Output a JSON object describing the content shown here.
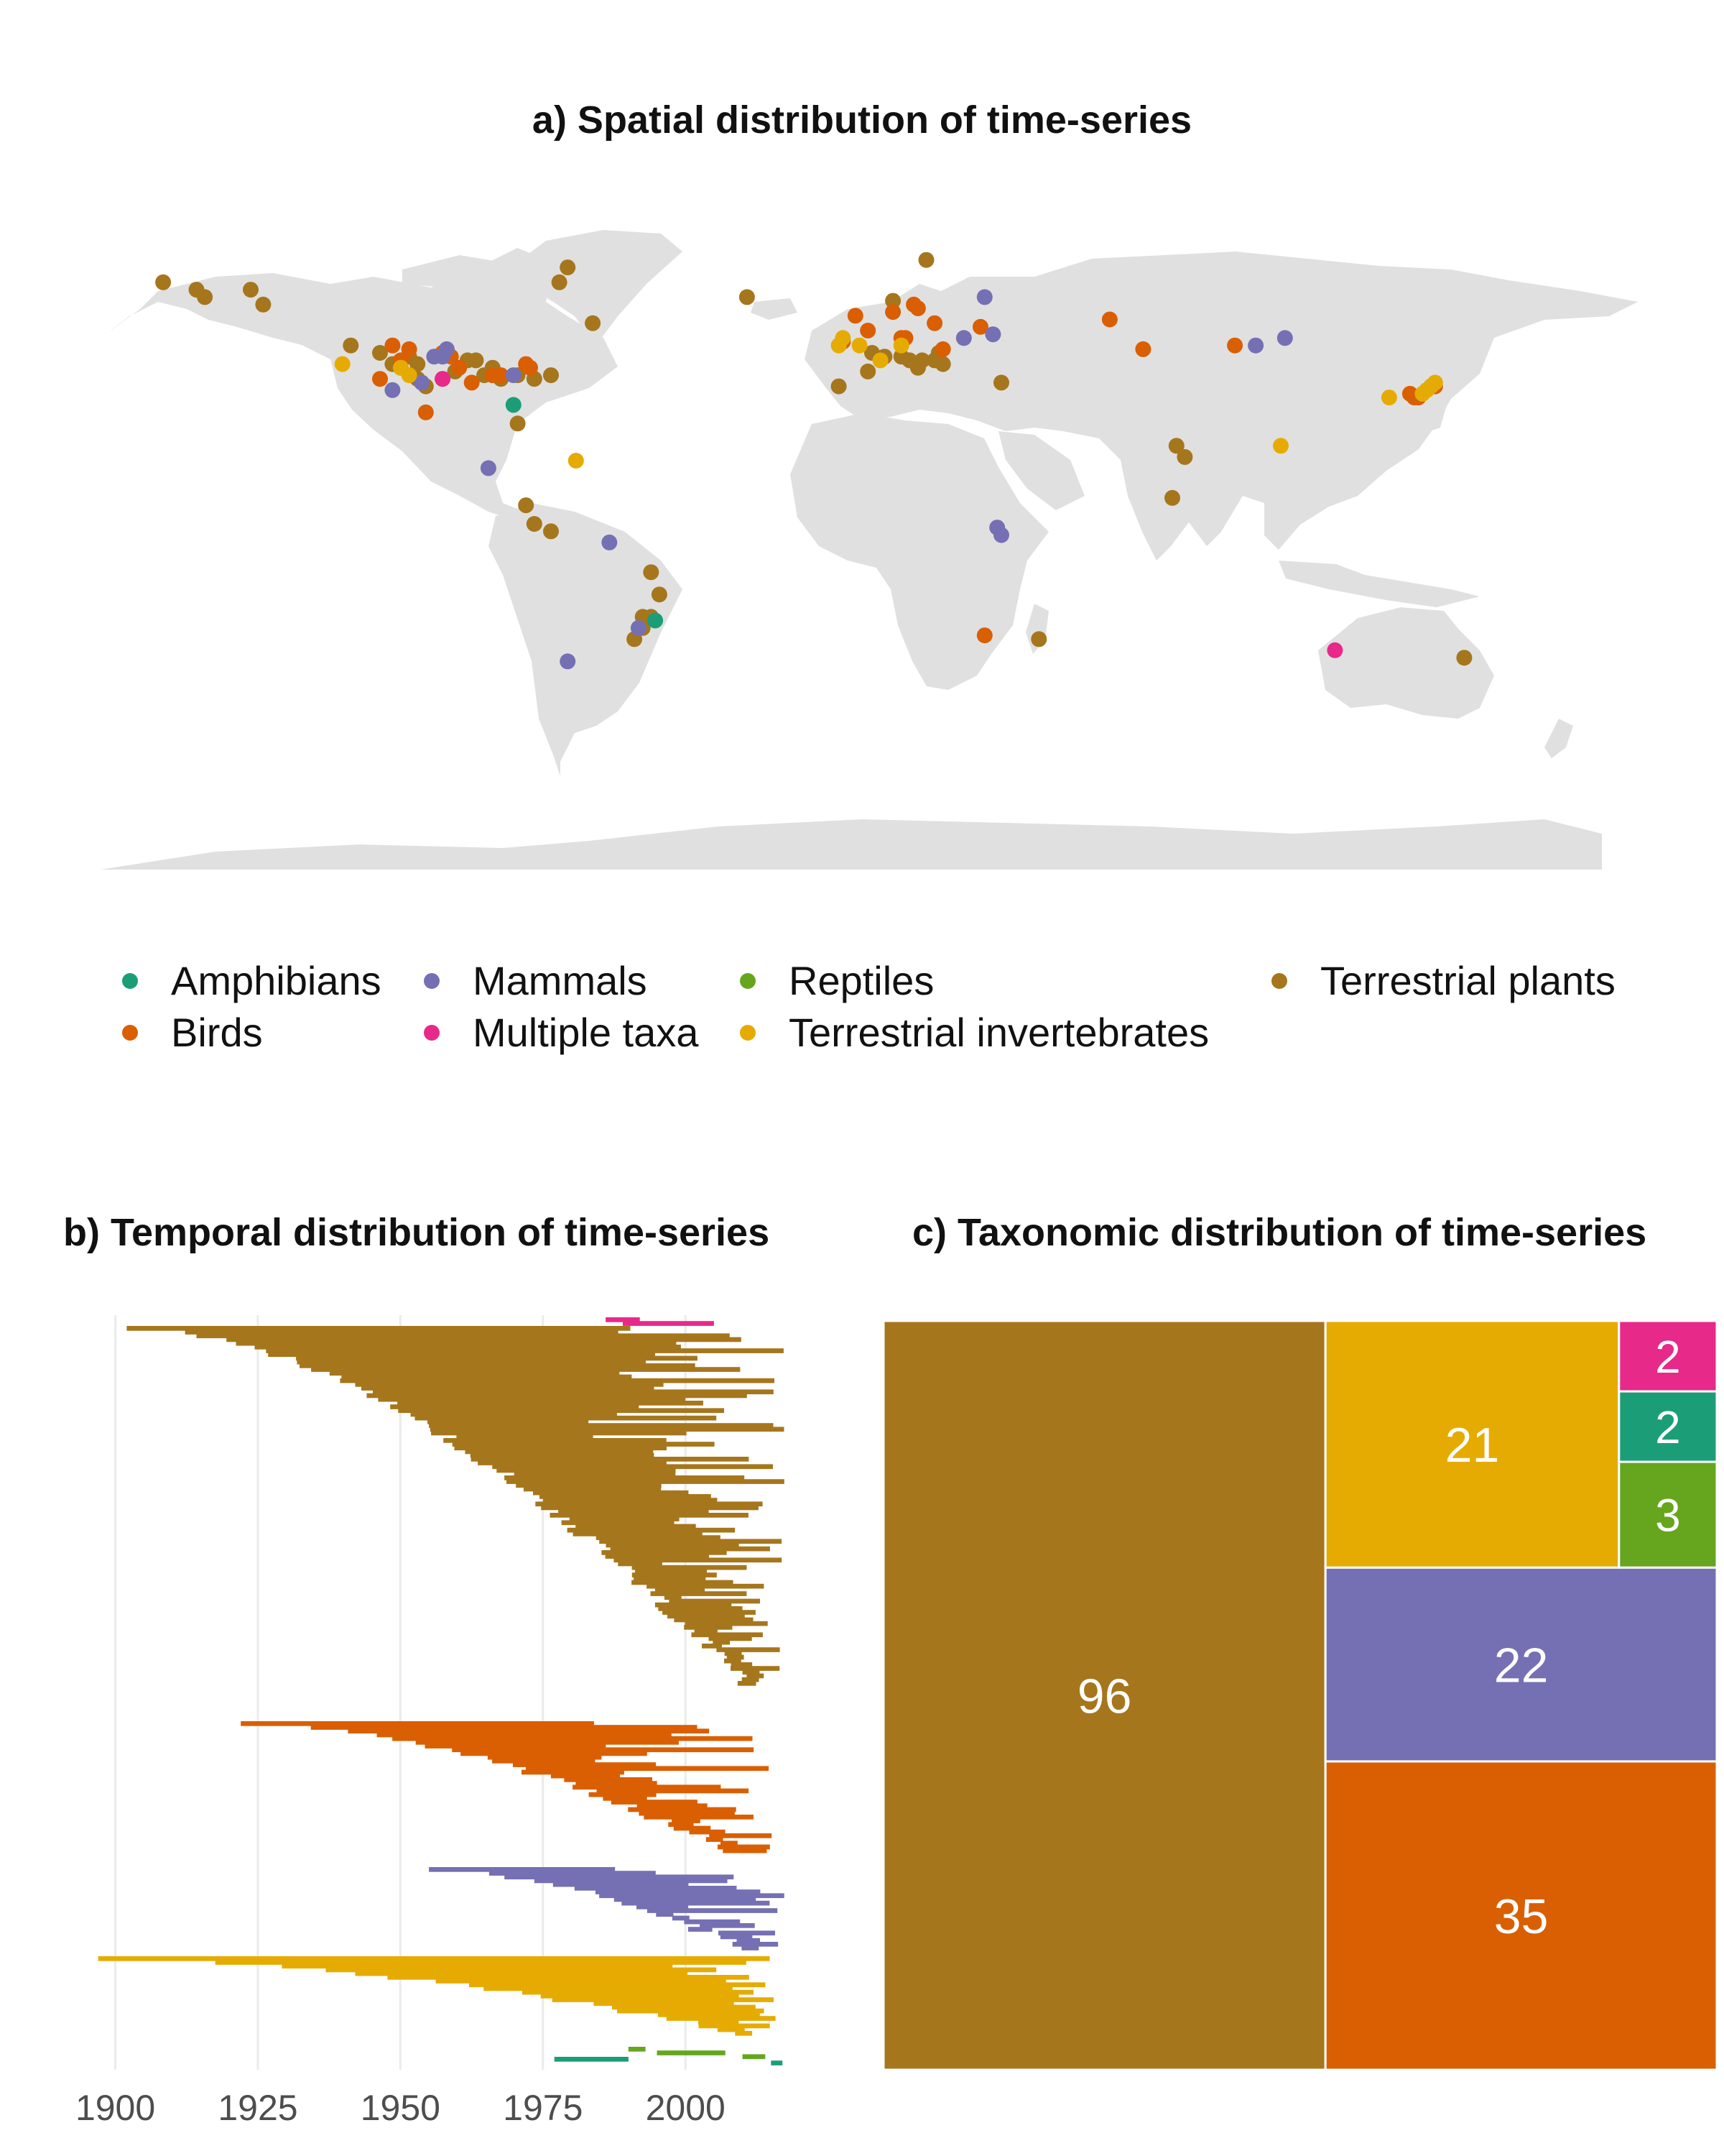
{
  "titles": {
    "map": "a) Spatial distribution of time-series",
    "temporal": "b) Temporal distribution of time-series",
    "taxonomic": "c) Taxonomic distribution of time-series"
  },
  "colors": {
    "amphibians": "#1b9e77",
    "birds": "#d95f02",
    "mammals": "#7570b3",
    "multiple": "#e7298a",
    "reptiles": "#66a61e",
    "invertebrates": "#e6ab02",
    "plants": "#a6761d",
    "land": "#e0e0e0",
    "grid": "#ebebeb"
  },
  "legend": [
    {
      "label": "Amphibians",
      "color": "#1b9e77"
    },
    {
      "label": "Birds",
      "color": "#d95f02"
    },
    {
      "label": "Mammals",
      "color": "#7570b3"
    },
    {
      "label": "Multiple taxa",
      "color": "#e7298a"
    },
    {
      "label": "Reptiles",
      "color": "#66a61e"
    },
    {
      "label": "Terrestrial invertebrates",
      "color": "#e6ab02"
    },
    {
      "label": "Terrestrial plants",
      "color": "#a6761d"
    }
  ],
  "chart_data": [
    {
      "type": "scatter",
      "title": "a) Spatial distribution of time-series",
      "xlabel": "",
      "ylabel": "",
      "xlim": [
        -180,
        180
      ],
      "ylim": [
        -90,
        84
      ],
      "grid": false,
      "legend_position": "bottom",
      "series": [
        {
          "name": "Terrestrial plants",
          "color": "#a6761d",
          "points": [
            [
              -165,
              68
            ],
            [
              -157,
              66
            ],
            [
              -155,
              64
            ],
            [
              -144,
              66
            ],
            [
              -141,
              62
            ],
            [
              -120,
              51
            ],
            [
              -113,
              49
            ],
            [
              -110,
              46
            ],
            [
              -108,
              45
            ],
            [
              -106,
              48
            ],
            [
              -104,
              46
            ],
            [
              -104,
              42
            ],
            [
              -102,
              40
            ],
            [
              -98,
              42
            ],
            [
              -95,
              44
            ],
            [
              -92,
              47
            ],
            [
              -90,
              47
            ],
            [
              -88,
              43
            ],
            [
              -86,
              45
            ],
            [
              -84,
              42
            ],
            [
              -80,
              43
            ],
            [
              -76,
              42
            ],
            [
              -72,
              43
            ],
            [
              -70,
              68
            ],
            [
              -68,
              72
            ],
            [
              -62,
              57
            ],
            [
              -80,
              30
            ],
            [
              -78,
              8
            ],
            [
              -76,
              3
            ],
            [
              -72,
              1
            ],
            [
              -48,
              -10
            ],
            [
              -46,
              -16
            ],
            [
              -48,
              -22
            ],
            [
              -50,
              -22
            ],
            [
              -52,
              -28
            ],
            [
              -50,
              -25
            ],
            [
              -25,
              64
            ],
            [
              10,
              63
            ],
            [
              18,
              74
            ],
            [
              5,
              49
            ],
            [
              8,
              48
            ],
            [
              12,
              48
            ],
            [
              14,
              47
            ],
            [
              17,
              47
            ],
            [
              20,
              47
            ],
            [
              22,
              46
            ],
            [
              16,
              45
            ],
            [
              21,
              49
            ],
            [
              4,
              44
            ],
            [
              -3,
              40
            ],
            [
              36,
              41
            ],
            [
              45,
              -28
            ],
            [
              78,
              24
            ],
            [
              80,
              21
            ],
            [
              77,
              10
            ],
            [
              147,
              -33
            ]
          ]
        },
        {
          "name": "Birds",
          "color": "#d95f02",
          "points": [
            [
              -110,
              51
            ],
            [
              -106,
              50
            ],
            [
              -108,
              47
            ],
            [
              -98,
              49
            ],
            [
              -96,
              48
            ],
            [
              -94,
              45
            ],
            [
              -91,
              41
            ],
            [
              -86,
              43
            ],
            [
              -84,
              43
            ],
            [
              -113,
              42
            ],
            [
              -102,
              33
            ],
            [
              -78,
              46
            ],
            [
              -77,
              45
            ],
            [
              -2,
              52
            ],
            [
              4,
              55
            ],
            [
              10,
              60
            ],
            [
              15,
              62
            ],
            [
              16,
              61
            ],
            [
              12,
              53
            ],
            [
              13,
              53
            ],
            [
              20,
              57
            ],
            [
              22,
              50
            ],
            [
              31,
              56
            ],
            [
              62,
              58
            ],
            [
              70,
              50
            ],
            [
              92,
              51
            ],
            [
              134,
              38
            ],
            [
              135,
              37
            ],
            [
              136,
              37
            ],
            [
              140,
              40
            ],
            [
              32,
              -27
            ],
            [
              1,
              59
            ]
          ]
        },
        {
          "name": "Mammals",
          "color": "#7570b3",
          "points": [
            [
              -97,
              50
            ],
            [
              -100,
              48
            ],
            [
              -98,
              48
            ],
            [
              -81,
              43
            ],
            [
              -103,
              41
            ],
            [
              -110,
              39
            ],
            [
              -87,
              18
            ],
            [
              -58,
              -2
            ],
            [
              -68,
              -34
            ],
            [
              -51,
              -25
            ],
            [
              35,
              2
            ],
            [
              36,
              0
            ],
            [
              32,
              64
            ],
            [
              27,
              53
            ],
            [
              34,
              54
            ],
            [
              97,
              51
            ],
            [
              104,
              53
            ]
          ]
        },
        {
          "name": "Multiple taxa",
          "color": "#e7298a",
          "points": [
            [
              -98,
              42
            ],
            [
              116,
              -31
            ]
          ]
        },
        {
          "name": "Terrestrial invertebrates",
          "color": "#e6ab02",
          "points": [
            [
              -122,
              46
            ],
            [
              -108,
              45
            ],
            [
              -66,
              20
            ],
            [
              -3,
              51
            ],
            [
              -2,
              53
            ],
            [
              2,
              51
            ],
            [
              7,
              47
            ],
            [
              12,
              51
            ],
            [
              103,
              24
            ],
            [
              129,
              37
            ],
            [
              137,
              38
            ],
            [
              138,
              39
            ],
            [
              139,
              40
            ],
            [
              140,
              41
            ],
            [
              -106,
              43
            ]
          ]
        },
        {
          "name": "Amphibians",
          "color": "#1b9e77",
          "points": [
            [
              -81,
              35
            ],
            [
              -47,
              -23
            ]
          ]
        }
      ]
    },
    {
      "type": "bar",
      "orientation": "horizontal-range",
      "title": "b) Temporal distribution of time-series",
      "xlabel": "",
      "ylabel": "",
      "xlim": [
        1893,
        2019
      ],
      "xticks": [
        1900,
        1925,
        1950,
        1975,
        2000
      ],
      "grid": true,
      "series": [
        {
          "name": "Multiple taxa",
          "color": "#e7298a",
          "count": 2
        },
        {
          "name": "Terrestrial plants",
          "color": "#a6761d",
          "count": 96,
          "start_range": [
            1902,
            2010
          ],
          "end_range": [
            1975,
            2018
          ]
        },
        {
          "name": "Birds",
          "color": "#d95f02",
          "count": 35,
          "start_range": [
            1922,
            2008
          ],
          "end_range": [
            1975,
            2016
          ]
        },
        {
          "name": "Mammals",
          "color": "#7570b3",
          "count": 22,
          "start_range": [
            1955,
            2010
          ],
          "end_range": [
            1985,
            2018
          ]
        },
        {
          "name": "Terrestrial invertebrates",
          "color": "#e6ab02",
          "count": 21,
          "start_range": [
            1897,
            2010
          ],
          "end_range": [
            1995,
            2016
          ]
        },
        {
          "name": "Reptiles",
          "color": "#66a61e",
          "count": 3
        },
        {
          "name": "Amphibians",
          "color": "#1b9e77",
          "count": 2
        }
      ]
    },
    {
      "type": "treemap",
      "title": "c) Taxonomic distribution of time-series",
      "items": [
        {
          "name": "Terrestrial plants",
          "value": 96,
          "color": "#a6761d"
        },
        {
          "name": "Birds",
          "value": 35,
          "color": "#d95f02"
        },
        {
          "name": "Mammals",
          "value": 22,
          "color": "#7570b3"
        },
        {
          "name": "Terrestrial invertebrates",
          "value": 21,
          "color": "#e6ab02"
        },
        {
          "name": "Reptiles",
          "value": 3,
          "color": "#66a61e"
        },
        {
          "name": "Amphibians",
          "value": 2,
          "color": "#1b9e77"
        },
        {
          "name": "Multiple taxa",
          "value": 2,
          "color": "#e7298a"
        }
      ]
    }
  ]
}
